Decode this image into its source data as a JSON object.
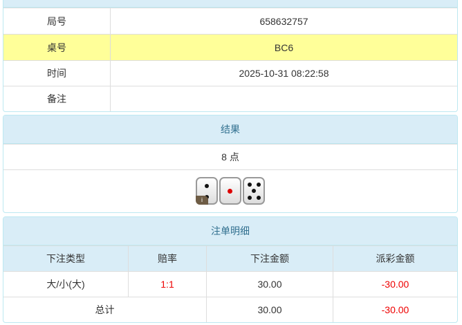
{
  "info": {
    "rows": [
      {
        "label": "局号",
        "value": "658632757"
      },
      {
        "label": "桌号",
        "value": "BC6"
      },
      {
        "label": "时间",
        "value": "2025-10-31 08:22:58"
      },
      {
        "label": "备注",
        "value": ""
      }
    ]
  },
  "result": {
    "title": "结果",
    "points": "8 点",
    "dice": [
      2,
      1,
      5
    ],
    "info_badge": "i"
  },
  "bets": {
    "title": "注单明细",
    "headers": [
      "下注类型",
      "赔率",
      "下注金额",
      "派彩金额"
    ],
    "rows": [
      {
        "type": "大/小(大)",
        "odds": "1:1",
        "amount": "30.00",
        "payout": "-30.00"
      }
    ],
    "total": {
      "label": "总计",
      "amount": "30.00",
      "payout": "-30.00"
    }
  },
  "colors": {
    "header_bg": "#d9edf7",
    "highlight": "#ffff99",
    "negative": "#ee0000"
  }
}
